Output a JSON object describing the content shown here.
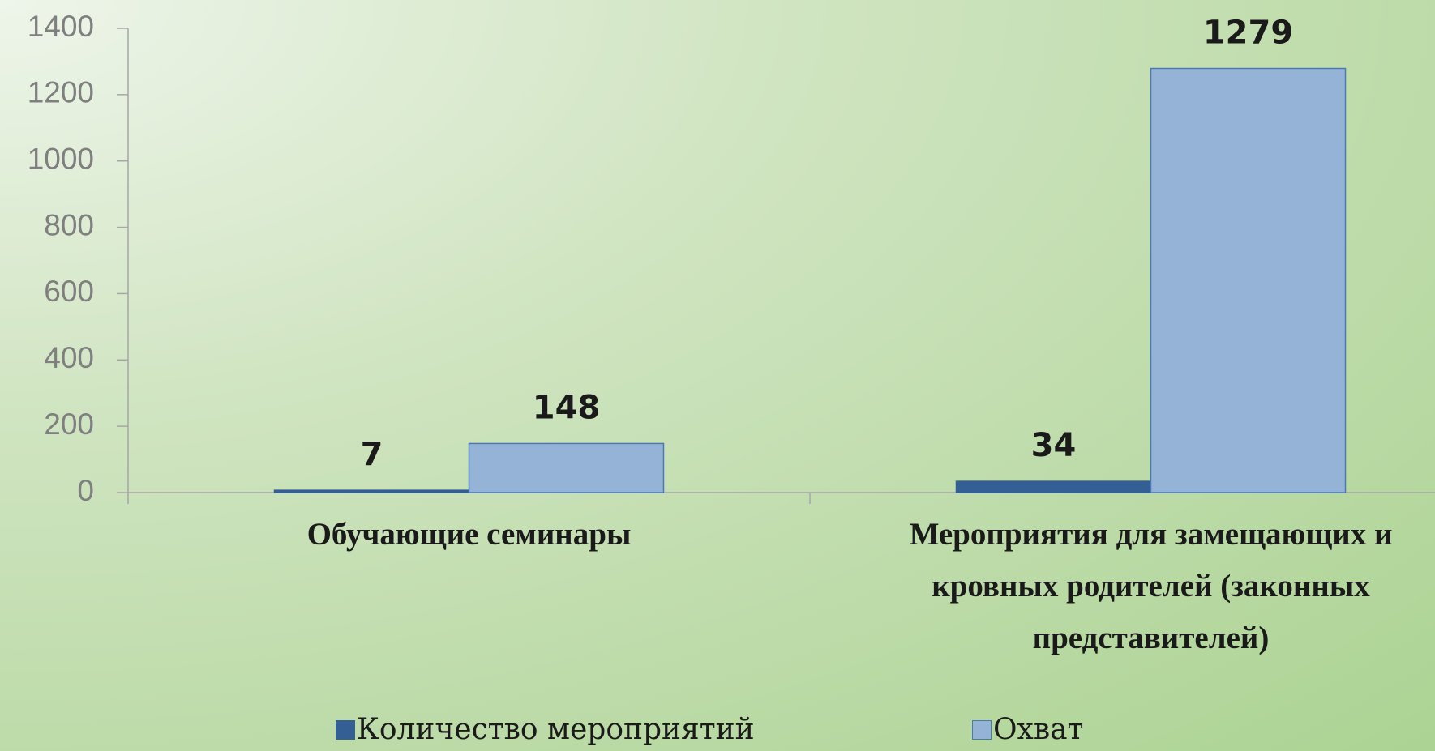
{
  "chart_data": {
    "type": "bar",
    "categories": [
      "Обучающие семинары",
      "Мероприятия для замещающих и кровных родителей (законных представителей)"
    ],
    "series": [
      {
        "name": "Количество мероприятий",
        "color": "#335f95",
        "values": [
          7,
          34
        ]
      },
      {
        "name": "Охват",
        "color": "#95b3d7",
        "values": [
          148,
          1279
        ]
      }
    ],
    "ylim": [
      0,
      1400
    ],
    "yticks": [
      0,
      200,
      400,
      600,
      800,
      1000,
      1200,
      1400
    ],
    "grid": false,
    "legend": "bottom"
  }
}
